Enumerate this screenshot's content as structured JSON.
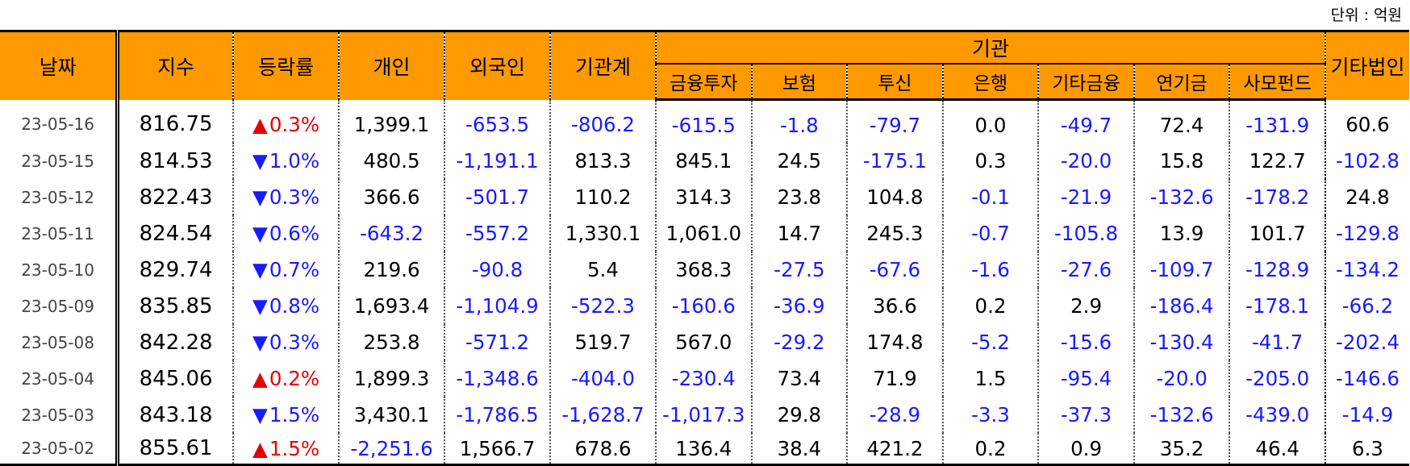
{
  "unit_label": "단위 : 억원",
  "headers": {
    "date": "날짜",
    "index": "지수",
    "change": "등락률",
    "individual": "개인",
    "foreign": "외국인",
    "institution_total": "기관계",
    "institution": "기관",
    "financial_investment": "금융투자",
    "insurance": "보험",
    "investment_trust": "투신",
    "bank": "은행",
    "other_financial": "기타금융",
    "pension": "연기금",
    "private_fund": "사모펀드",
    "other_corporation": "기타법인"
  },
  "colors": {
    "header_bg": "#ff9900",
    "negative": "#1a1aff",
    "rise": "#e60000",
    "fall": "#1a1aff"
  },
  "rows": [
    {
      "date": "23-05-16",
      "index": "816.75",
      "dir": "up",
      "arrow": "▲",
      "change": "0.3%",
      "individual": "1,399.1",
      "foreign": "-653.5",
      "inst_total": "-806.2",
      "fin_inv": "-615.5",
      "insurance": "-1.8",
      "trust": "-79.7",
      "bank": "0.0",
      "other_fin": "-49.7",
      "pension": "72.4",
      "private_fund": "-131.9",
      "other_corp": "60.6"
    },
    {
      "date": "23-05-15",
      "index": "814.53",
      "dir": "down",
      "arrow": "▼",
      "change": "1.0%",
      "individual": "480.5",
      "foreign": "-1,191.1",
      "inst_total": "813.3",
      "fin_inv": "845.1",
      "insurance": "24.5",
      "trust": "-175.1",
      "bank": "0.3",
      "other_fin": "-20.0",
      "pension": "15.8",
      "private_fund": "122.7",
      "other_corp": "-102.8"
    },
    {
      "date": "23-05-12",
      "index": "822.43",
      "dir": "down",
      "arrow": "▼",
      "change": "0.3%",
      "individual": "366.6",
      "foreign": "-501.7",
      "inst_total": "110.2",
      "fin_inv": "314.3",
      "insurance": "23.8",
      "trust": "104.8",
      "bank": "-0.1",
      "other_fin": "-21.9",
      "pension": "-132.6",
      "private_fund": "-178.2",
      "other_corp": "24.8"
    },
    {
      "date": "23-05-11",
      "index": "824.54",
      "dir": "down",
      "arrow": "▼",
      "change": "0.6%",
      "individual": "-643.2",
      "foreign": "-557.2",
      "inst_total": "1,330.1",
      "fin_inv": "1,061.0",
      "insurance": "14.7",
      "trust": "245.3",
      "bank": "-0.7",
      "other_fin": "-105.8",
      "pension": "13.9",
      "private_fund": "101.7",
      "other_corp": "-129.8"
    },
    {
      "date": "23-05-10",
      "index": "829.74",
      "dir": "down",
      "arrow": "▼",
      "change": "0.7%",
      "individual": "219.6",
      "foreign": "-90.8",
      "inst_total": "5.4",
      "fin_inv": "368.3",
      "insurance": "-27.5",
      "trust": "-67.6",
      "bank": "-1.6",
      "other_fin": "-27.6",
      "pension": "-109.7",
      "private_fund": "-128.9",
      "other_corp": "-134.2"
    },
    {
      "date": "23-05-09",
      "index": "835.85",
      "dir": "down",
      "arrow": "▼",
      "change": "0.8%",
      "individual": "1,693.4",
      "foreign": "-1,104.9",
      "inst_total": "-522.3",
      "fin_inv": "-160.6",
      "insurance": "-36.9",
      "trust": "36.6",
      "bank": "0.2",
      "other_fin": "2.9",
      "pension": "-186.4",
      "private_fund": "-178.1",
      "other_corp": "-66.2"
    },
    {
      "date": "23-05-08",
      "index": "842.28",
      "dir": "down",
      "arrow": "▼",
      "change": "0.3%",
      "individual": "253.8",
      "foreign": "-571.2",
      "inst_total": "519.7",
      "fin_inv": "567.0",
      "insurance": "-29.2",
      "trust": "174.8",
      "bank": "-5.2",
      "other_fin": "-15.6",
      "pension": "-130.4",
      "private_fund": "-41.7",
      "other_corp": "-202.4"
    },
    {
      "date": "23-05-04",
      "index": "845.06",
      "dir": "up",
      "arrow": "▲",
      "change": "0.2%",
      "individual": "1,899.3",
      "foreign": "-1,348.6",
      "inst_total": "-404.0",
      "fin_inv": "-230.4",
      "insurance": "73.4",
      "trust": "71.9",
      "bank": "1.5",
      "other_fin": "-95.4",
      "pension": "-20.0",
      "private_fund": "-205.0",
      "other_corp": "-146.6"
    },
    {
      "date": "23-05-03",
      "index": "843.18",
      "dir": "down",
      "arrow": "▼",
      "change": "1.5%",
      "individual": "3,430.1",
      "foreign": "-1,786.5",
      "inst_total": "-1,628.7",
      "fin_inv": "-1,017.3",
      "insurance": "29.8",
      "trust": "-28.9",
      "bank": "-3.3",
      "other_fin": "-37.3",
      "pension": "-132.6",
      "private_fund": "-439.0",
      "other_corp": "-14.9"
    },
    {
      "date": "23-05-02",
      "index": "855.61",
      "dir": "up",
      "arrow": "▲",
      "change": "1.5%",
      "individual": "-2,251.6",
      "foreign": "1,566.7",
      "inst_total": "678.6",
      "fin_inv": "136.4",
      "insurance": "38.4",
      "trust": "421.2",
      "bank": "0.2",
      "other_fin": "0.9",
      "pension": "35.2",
      "private_fund": "46.4",
      "other_corp": "6.3"
    }
  ]
}
